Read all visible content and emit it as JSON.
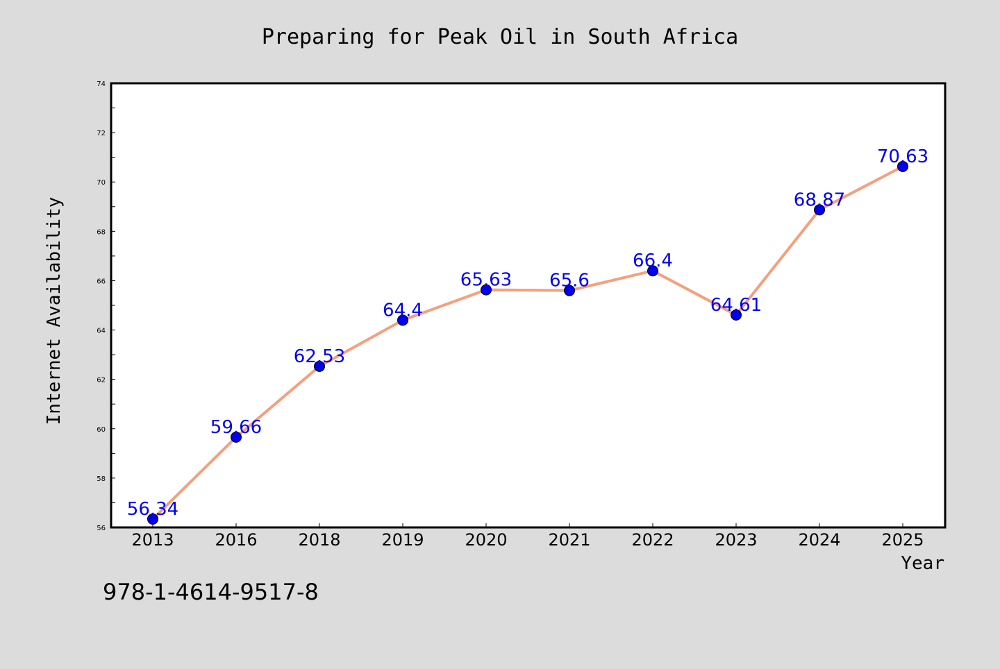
{
  "chart_data": {
    "type": "line",
    "title": "Preparing for Peak Oil in South Africa",
    "xlabel": "Year",
    "ylabel": "Internet Availability",
    "categories": [
      "2013",
      "2016",
      "2018",
      "2019",
      "2020",
      "2021",
      "2022",
      "2023",
      "2024",
      "2025"
    ],
    "series": [
      {
        "values": [
          56.34,
          59.66,
          62.53,
          64.4,
          65.63,
          65.6,
          66.4,
          64.61,
          68.87,
          70.63
        ],
        "data_labels": [
          "56.34",
          "59.66",
          "62.53",
          "64.4",
          "65.63",
          "65.6",
          "66.4",
          "64.61",
          "68.87",
          "70.63"
        ],
        "line_color": "#f4a07e",
        "marker_color": "#0000ee",
        "label_color": "#0000ee"
      }
    ],
    "ylim": [
      56,
      74
    ],
    "y_ticks": [
      "56",
      "58",
      "60",
      "62",
      "64",
      "66",
      "68",
      "70",
      "72",
      "74"
    ],
    "grid": false,
    "legend": "none",
    "annotation": "978-1-4614-9517-8",
    "background_color": "#dcdcdc",
    "plot_background_color": "#ffffff"
  }
}
